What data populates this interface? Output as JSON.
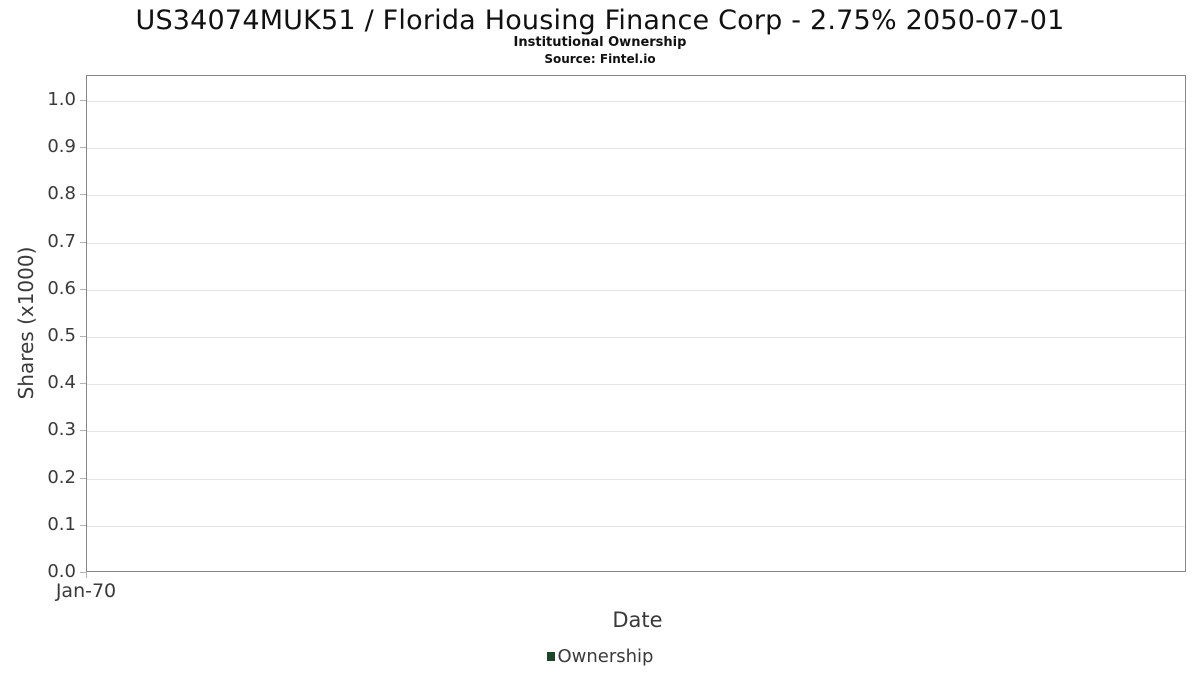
{
  "header": {
    "title": "US34074MUK51 / Florida Housing Finance Corp - 2.75% 2050-07-01",
    "subtitle": "Institutional Ownership",
    "source": "Source: Fintel.io"
  },
  "chart_data": {
    "type": "bar",
    "title": "US34074MUK51 / Florida Housing Finance Corp - 2.75% 2050-07-01",
    "subtitle": "Institutional Ownership",
    "source": "Source: Fintel.io",
    "xlabel": "Date",
    "ylabel": "Shares (x1000)",
    "ylim": [
      0.0,
      1.053
    ],
    "ytick_labels": [
      "0.0",
      "0.1",
      "0.2",
      "0.3",
      "0.4",
      "0.5",
      "0.6",
      "0.7",
      "0.8",
      "0.9",
      "1.0"
    ],
    "ytick_values": [
      0.0,
      0.1,
      0.2,
      0.3,
      0.4,
      0.5,
      0.6,
      0.7,
      0.8,
      0.9,
      1.0
    ],
    "xticks": [
      "Jan-70"
    ],
    "grid": "horizontal",
    "legend_position": "bottom-center",
    "series": [
      {
        "name": "Ownership",
        "color": "#1e4527",
        "x": [],
        "values": []
      }
    ],
    "note": "empty plot - no data points rendered"
  },
  "colors": {
    "plot_border": "#868686",
    "gridline": "#e4e4e4",
    "tick": "#b4b4b4",
    "text_primary": "#111111",
    "text_axis": "#3a3a3a",
    "legend_swatch": "#1e4527"
  }
}
